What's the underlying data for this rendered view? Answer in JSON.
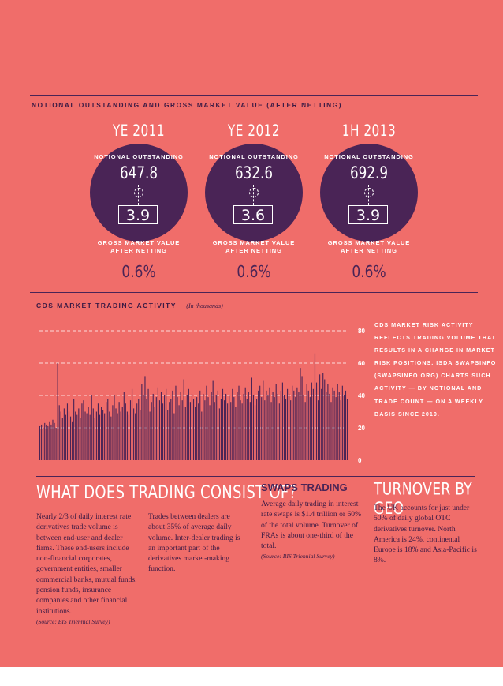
{
  "header": {
    "title": "NOTIONAL OUTSTANDING AND GROSS MARKET VALUE (AFTER NETTING)"
  },
  "periods": [
    {
      "year": "YE 2011",
      "notional_label": "NOTIONAL OUTSTANDING",
      "notional_value": "647.8",
      "gross_value": "3.9",
      "gross_label_1": "GROSS MARKET VALUE",
      "gross_label_2": "AFTER NETTING",
      "percent": "0.6%"
    },
    {
      "year": "YE 2012",
      "notional_label": "NOTIONAL OUTSTANDING",
      "notional_value": "632.6",
      "gross_value": "3.6",
      "gross_label_1": "GROSS MARKET VALUE",
      "gross_label_2": "AFTER NETTING",
      "percent": "0.6%"
    },
    {
      "year": "1H 2013",
      "notional_label": "NOTIONAL OUTSTANDING",
      "notional_value": "692.9",
      "gross_value": "3.9",
      "gross_label_1": "GROSS MARKET VALUE",
      "gross_label_2": "AFTER NETTING",
      "percent": "0.6%"
    }
  ],
  "chart_section": {
    "title": "CDS MARKET TRADING ACTIVITY",
    "subtitle": "(In thousands)",
    "side_note": "CDS MARKET RISK ACTIVITY REFLECTS TRADING VOLUME THAT RESULTS IN A CHANGE IN MARKET RISK POSITIONS. ISDA SWAPSINFO (SWAPSINFO.ORG) CHARTS SUCH ACTIVITY — BY NOTIONAL AND TRADE COUNT — ON A WEEKLY BASIS SINCE 2010."
  },
  "chart_data": {
    "type": "bar",
    "title": "CDS MARKET TRADING ACTIVITY",
    "subtitle": "(In thousands)",
    "ylim": [
      0,
      80
    ],
    "yticks": [
      "80",
      "60",
      "40",
      "20",
      "0"
    ],
    "grid": true,
    "colors": {
      "bar": "#4a2456",
      "grid": "#ffffff"
    },
    "values": [
      21,
      22,
      20,
      23,
      22,
      21,
      24,
      22,
      25,
      23,
      20,
      60,
      34,
      30,
      26,
      32,
      28,
      35,
      30,
      27,
      24,
      38,
      30,
      28,
      32,
      26,
      35,
      37,
      30,
      29,
      33,
      28,
      40,
      32,
      26,
      30,
      35,
      28,
      33,
      31,
      29,
      36,
      38,
      30,
      27,
      34,
      40,
      32,
      29,
      36,
      30,
      33,
      42,
      35,
      30,
      28,
      37,
      44,
      32,
      29,
      35,
      38,
      31,
      47,
      40,
      52,
      38,
      44,
      30,
      36,
      41,
      33,
      39,
      45,
      37,
      42,
      35,
      40,
      44,
      31,
      36,
      38,
      43,
      29,
      46,
      39,
      34,
      42,
      37,
      50,
      33,
      40,
      44,
      36,
      41,
      38,
      33,
      39,
      35,
      43,
      30,
      41,
      37,
      46,
      39,
      34,
      42,
      49,
      36,
      40,
      43,
      32,
      38,
      44,
      37,
      41,
      35,
      40,
      36,
      44,
      39,
      33,
      42,
      46,
      37,
      35,
      41,
      45,
      38,
      42,
      36,
      51,
      40,
      34,
      38,
      43,
      46,
      39,
      49,
      37,
      43,
      40,
      45,
      36,
      42,
      39,
      47,
      41,
      35,
      43,
      48,
      40,
      38,
      44,
      41,
      37,
      46,
      43,
      39,
      45,
      42,
      57,
      52,
      40,
      36,
      47,
      43,
      39,
      48,
      44,
      66,
      48,
      37,
      53,
      44,
      54,
      50,
      42,
      47,
      41,
      36,
      45,
      43,
      39,
      47,
      42,
      37,
      46,
      40,
      43,
      38
    ]
  },
  "sections": {
    "trading": {
      "title": "WHAT DOES TRADING CONSIST OF?",
      "para1": "Nearly 2/3 of daily interest rate derivatives trade volume is between end-user and dealer firms. These end-users include non-financial corporates, government entities, smaller commercial banks, mutual funds, pension funds, insurance companies and other financial institutions.",
      "source1": "(Source: BIS Triennial Survey)",
      "para2": "Trades between dealers are about 35% of average daily volume. Inter-dealer trading is an important part of the derivatives market-making function."
    },
    "swaps": {
      "title": "SWAPS TRADING",
      "para": "Average daily trading in interest rate swaps is $1.4 trillion or 60% of the total volume. Turnover of FRAs is about one-third of the total.",
      "source": "(Source: BIS Triennial Survey)"
    },
    "turnover": {
      "title": "TURNOVER BY GEO",
      "para": "The UK accounts for just under 50% of daily global OTC derivatives turnover. North America is 24%, continental Europe is 18% and Asia-Pacific is 8%."
    }
  }
}
